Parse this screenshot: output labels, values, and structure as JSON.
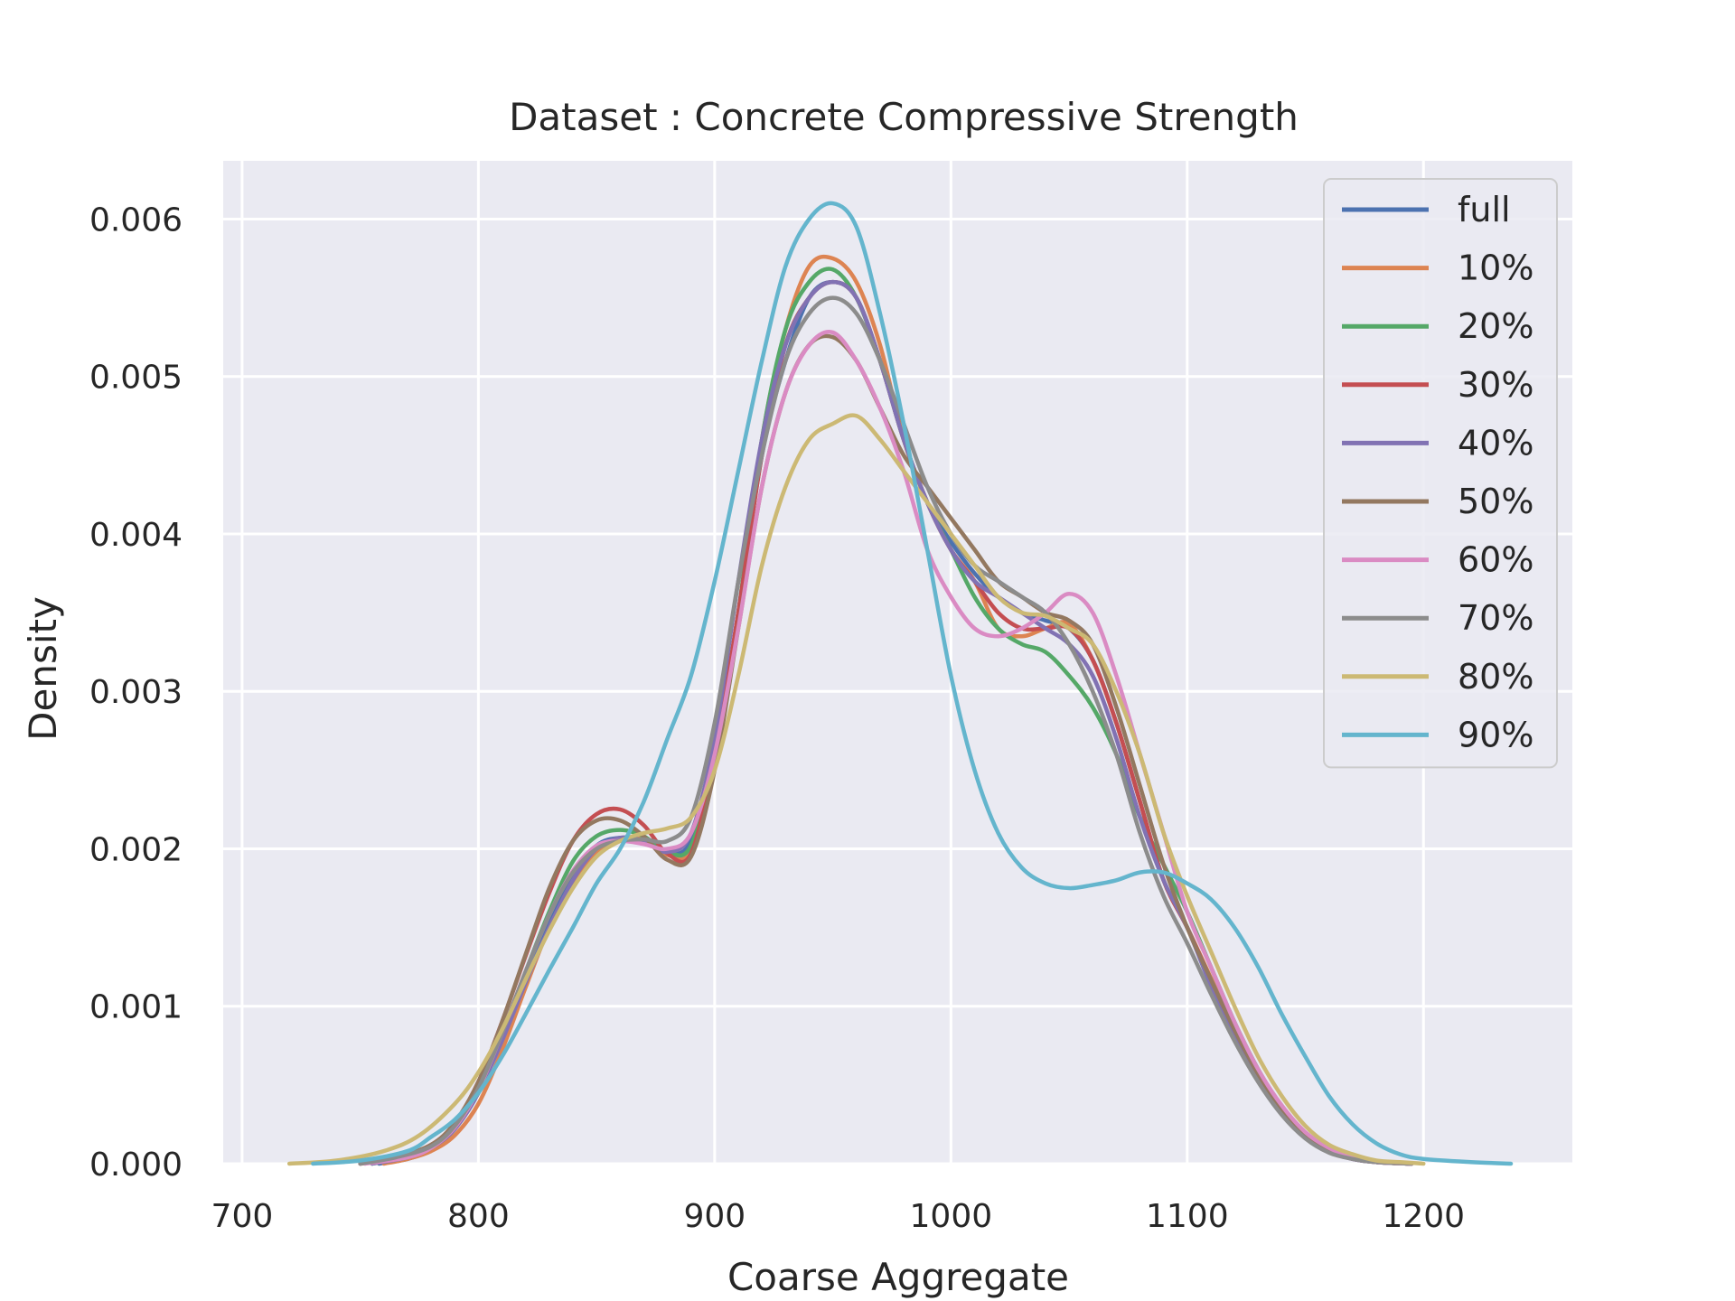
{
  "chart_data": {
    "type": "line",
    "title": "Dataset : Concrete Compressive Strength",
    "xlabel": "Coarse Aggregate",
    "ylabel": "Density",
    "xlim": [
      692,
      1263
    ],
    "ylim": [
      0,
      0.00637
    ],
    "x_ticks": [
      700,
      800,
      900,
      1000,
      1100,
      1200
    ],
    "x_tick_labels": [
      "700",
      "800",
      "900",
      "1000",
      "1100",
      "1200"
    ],
    "y_ticks": [
      0,
      0.001,
      0.002,
      0.003,
      0.004,
      0.005,
      0.006
    ],
    "y_tick_labels": [
      "0.000",
      "0.001",
      "0.002",
      "0.003",
      "0.004",
      "0.005",
      "0.006"
    ],
    "grid": true,
    "legend_position": "top-right",
    "background_color": "#eaeaf2",
    "series": [
      {
        "name": "full",
        "color": "#4c72b0",
        "x": [
          758,
          770,
          780,
          790,
          800,
          810,
          820,
          830,
          840,
          850,
          860,
          870,
          880,
          890,
          900,
          910,
          920,
          930,
          940,
          950,
          960,
          970,
          980,
          990,
          1000,
          1010,
          1020,
          1030,
          1040,
          1050,
          1060,
          1070,
          1080,
          1090,
          1100,
          1110,
          1120,
          1130,
          1140,
          1150,
          1160,
          1170,
          1180,
          1195
        ],
        "y": [
          0,
          3e-05,
          9e-05,
          0.00022,
          0.00045,
          0.0008,
          0.00117,
          0.00152,
          0.00182,
          0.00202,
          0.00207,
          0.00205,
          0.00197,
          0.00205,
          0.0026,
          0.0035,
          0.0045,
          0.0051,
          0.0055,
          0.0056,
          0.0055,
          0.0051,
          0.0046,
          0.0042,
          0.00395,
          0.00375,
          0.0036,
          0.0035,
          0.00345,
          0.0034,
          0.0032,
          0.0028,
          0.0023,
          0.0018,
          0.0015,
          0.00115,
          0.00082,
          0.00055,
          0.00033,
          0.00017,
          8e-05,
          3e-05,
          1e-05,
          0
        ]
      },
      {
        "name": "10%",
        "color": "#dd8452",
        "x": [
          760,
          770,
          780,
          790,
          800,
          810,
          820,
          830,
          840,
          850,
          860,
          870,
          880,
          890,
          900,
          910,
          920,
          930,
          940,
          950,
          960,
          970,
          980,
          990,
          1000,
          1010,
          1020,
          1030,
          1040,
          1050,
          1060,
          1070,
          1080,
          1090,
          1100,
          1110,
          1120,
          1130,
          1140,
          1150,
          1160,
          1170,
          1180,
          1195
        ],
        "y": [
          0,
          3e-05,
          8e-05,
          0.00018,
          0.00038,
          0.00072,
          0.00112,
          0.0015,
          0.00178,
          0.00198,
          0.00205,
          0.00206,
          0.00196,
          0.002,
          0.0026,
          0.0035,
          0.0046,
          0.0053,
          0.0057,
          0.00575,
          0.0056,
          0.0052,
          0.0046,
          0.0042,
          0.0039,
          0.0037,
          0.0034,
          0.00335,
          0.0034,
          0.00343,
          0.0032,
          0.0028,
          0.0023,
          0.0018,
          0.0015,
          0.00118,
          0.00085,
          0.00057,
          0.00035,
          0.00019,
          9e-05,
          4e-05,
          1e-05,
          0
        ]
      },
      {
        "name": "20%",
        "color": "#55a868",
        "x": [
          755,
          770,
          780,
          790,
          800,
          810,
          820,
          830,
          840,
          850,
          860,
          870,
          880,
          890,
          900,
          910,
          920,
          930,
          940,
          950,
          960,
          970,
          980,
          990,
          1000,
          1010,
          1020,
          1030,
          1040,
          1050,
          1060,
          1070,
          1080,
          1090,
          1100,
          1110,
          1120,
          1130,
          1140,
          1150,
          1160,
          1170,
          1180,
          1195
        ],
        "y": [
          0,
          4e-05,
          0.0001,
          0.00023,
          0.00047,
          0.00083,
          0.00122,
          0.0016,
          0.00192,
          0.00208,
          0.00212,
          0.00208,
          0.00198,
          0.00202,
          0.0026,
          0.0035,
          0.0046,
          0.0053,
          0.0056,
          0.00568,
          0.0055,
          0.0051,
          0.0046,
          0.0042,
          0.0039,
          0.0036,
          0.0034,
          0.0033,
          0.00325,
          0.0031,
          0.0029,
          0.0026,
          0.0022,
          0.0019,
          0.0016,
          0.00125,
          0.0009,
          0.0006,
          0.00036,
          0.00019,
          9e-05,
          4e-05,
          1e-05,
          0
        ]
      },
      {
        "name": "30%",
        "color": "#c44e52",
        "x": [
          750,
          765,
          780,
          790,
          800,
          810,
          820,
          830,
          840,
          850,
          860,
          870,
          880,
          890,
          900,
          910,
          920,
          930,
          940,
          950,
          960,
          970,
          980,
          990,
          1000,
          1010,
          1020,
          1030,
          1040,
          1050,
          1060,
          1070,
          1080,
          1090,
          1100,
          1110,
          1120,
          1130,
          1140,
          1150,
          1160,
          1170,
          1180,
          1195
        ],
        "y": [
          0,
          4e-05,
          0.00012,
          0.00026,
          0.00052,
          0.0009,
          0.00132,
          0.00172,
          0.00205,
          0.00222,
          0.00225,
          0.00215,
          0.00197,
          0.00197,
          0.0026,
          0.0035,
          0.0045,
          0.0052,
          0.0055,
          0.0056,
          0.0055,
          0.0051,
          0.0046,
          0.0042,
          0.0039,
          0.0037,
          0.0035,
          0.0034,
          0.0034,
          0.0034,
          0.0032,
          0.0028,
          0.0023,
          0.0018,
          0.0015,
          0.00117,
          0.00084,
          0.00056,
          0.00034,
          0.00018,
          8e-05,
          3e-05,
          1e-05,
          0
        ]
      },
      {
        "name": "40%",
        "color": "#8172b3",
        "x": [
          755,
          770,
          780,
          790,
          800,
          810,
          820,
          830,
          840,
          850,
          860,
          870,
          880,
          890,
          900,
          910,
          920,
          930,
          940,
          950,
          960,
          970,
          980,
          990,
          1000,
          1010,
          1020,
          1030,
          1040,
          1050,
          1060,
          1070,
          1080,
          1090,
          1100,
          1110,
          1120,
          1130,
          1140,
          1150,
          1160,
          1170,
          1180,
          1195
        ],
        "y": [
          0,
          4e-05,
          0.0001,
          0.00022,
          0.00045,
          0.00078,
          0.00115,
          0.0015,
          0.0018,
          0.002,
          0.00207,
          0.00205,
          0.00198,
          0.0021,
          0.0027,
          0.0037,
          0.0046,
          0.0052,
          0.0055,
          0.0056,
          0.0055,
          0.0051,
          0.0046,
          0.0042,
          0.0039,
          0.0037,
          0.0036,
          0.0035,
          0.0034,
          0.0033,
          0.0031,
          0.0027,
          0.0022,
          0.0018,
          0.0015,
          0.00113,
          0.0008,
          0.00053,
          0.00032,
          0.00017,
          8e-05,
          3e-05,
          1e-05,
          0
        ]
      },
      {
        "name": "50%",
        "color": "#937860",
        "x": [
          750,
          765,
          780,
          790,
          800,
          810,
          820,
          830,
          840,
          850,
          860,
          870,
          880,
          890,
          900,
          910,
          920,
          930,
          940,
          950,
          960,
          970,
          980,
          990,
          1000,
          1010,
          1020,
          1030,
          1040,
          1050,
          1060,
          1070,
          1080,
          1090,
          1100,
          1110,
          1120,
          1130,
          1140,
          1150,
          1160,
          1170,
          1180,
          1195
        ],
        "y": [
          0,
          4e-05,
          0.00012,
          0.00026,
          0.00052,
          0.0009,
          0.00133,
          0.00175,
          0.00205,
          0.00218,
          0.00218,
          0.00208,
          0.00193,
          0.00195,
          0.0025,
          0.0034,
          0.0043,
          0.0049,
          0.0052,
          0.00525,
          0.0051,
          0.0048,
          0.0045,
          0.0043,
          0.0041,
          0.0039,
          0.0037,
          0.0036,
          0.0035,
          0.00345,
          0.0033,
          0.0029,
          0.0024,
          0.0019,
          0.0015,
          0.00117,
          0.00085,
          0.00057,
          0.00035,
          0.00019,
          9e-05,
          4e-05,
          1e-05,
          0
        ]
      },
      {
        "name": "60%",
        "color": "#da8bc3",
        "x": [
          752,
          770,
          780,
          790,
          800,
          810,
          820,
          830,
          840,
          850,
          860,
          870,
          880,
          890,
          900,
          910,
          920,
          930,
          940,
          950,
          960,
          970,
          980,
          990,
          1000,
          1010,
          1020,
          1030,
          1040,
          1050,
          1060,
          1070,
          1080,
          1090,
          1100,
          1110,
          1120,
          1130,
          1140,
          1150,
          1160,
          1170,
          1180,
          1195
        ],
        "y": [
          0,
          4e-05,
          0.0001,
          0.00023,
          0.00047,
          0.00083,
          0.00122,
          0.00158,
          0.00186,
          0.00202,
          0.00205,
          0.00203,
          0.002,
          0.0021,
          0.0026,
          0.0034,
          0.0043,
          0.0049,
          0.0052,
          0.00528,
          0.0051,
          0.0048,
          0.0044,
          0.0039,
          0.0036,
          0.0034,
          0.00335,
          0.0034,
          0.0035,
          0.00362,
          0.0035,
          0.0031,
          0.0026,
          0.0021,
          0.0016,
          0.00125,
          0.0009,
          0.0006,
          0.00037,
          0.0002,
          0.0001,
          4e-05,
          1e-05,
          0
        ]
      },
      {
        "name": "70%",
        "color": "#8c8c8c",
        "x": [
          750,
          765,
          780,
          790,
          800,
          810,
          820,
          830,
          840,
          850,
          860,
          870,
          880,
          890,
          900,
          910,
          920,
          930,
          940,
          950,
          960,
          970,
          980,
          990,
          1000,
          1010,
          1020,
          1030,
          1040,
          1050,
          1060,
          1070,
          1080,
          1090,
          1100,
          1110,
          1120,
          1130,
          1140,
          1150,
          1160,
          1170,
          1180,
          1195
        ],
        "y": [
          0,
          4e-05,
          0.00011,
          0.00024,
          0.00048,
          0.00083,
          0.00122,
          0.00158,
          0.00185,
          0.002,
          0.00205,
          0.00206,
          0.00205,
          0.0022,
          0.0028,
          0.0037,
          0.0045,
          0.0051,
          0.0054,
          0.0055,
          0.0054,
          0.0051,
          0.0047,
          0.0043,
          0.004,
          0.0038,
          0.0037,
          0.0036,
          0.0035,
          0.0033,
          0.003,
          0.0026,
          0.0021,
          0.0017,
          0.0014,
          0.00108,
          0.00078,
          0.00052,
          0.00031,
          0.00016,
          7e-05,
          3e-05,
          1e-05,
          0
        ]
      },
      {
        "name": "80%",
        "color": "#ccb974",
        "x": [
          720,
          740,
          760,
          775,
          790,
          800,
          810,
          820,
          830,
          840,
          850,
          860,
          870,
          880,
          890,
          900,
          910,
          920,
          930,
          940,
          950,
          960,
          970,
          980,
          990,
          1000,
          1010,
          1020,
          1030,
          1040,
          1050,
          1060,
          1070,
          1080,
          1090,
          1100,
          1110,
          1120,
          1130,
          1140,
          1150,
          1160,
          1170,
          1180,
          1190,
          1200
        ],
        "y": [
          0,
          2e-05,
          8e-05,
          0.00018,
          0.00038,
          0.00058,
          0.00085,
          0.00117,
          0.00148,
          0.00175,
          0.00195,
          0.00205,
          0.0021,
          0.00213,
          0.0022,
          0.0025,
          0.0031,
          0.0038,
          0.0043,
          0.0046,
          0.0047,
          0.00475,
          0.0046,
          0.0044,
          0.0042,
          0.004,
          0.0038,
          0.0036,
          0.0035,
          0.00348,
          0.0034,
          0.0033,
          0.003,
          0.0026,
          0.0021,
          0.0017,
          0.00135,
          0.001,
          0.00068,
          0.00043,
          0.00024,
          0.00012,
          6e-05,
          2e-05,
          1e-05,
          0
        ]
      },
      {
        "name": "90%",
        "color": "#64b5cd",
        "x": [
          730,
          750,
          770,
          780,
          790,
          800,
          810,
          820,
          830,
          840,
          850,
          860,
          870,
          880,
          890,
          900,
          910,
          920,
          930,
          940,
          950,
          960,
          970,
          980,
          990,
          1000,
          1010,
          1020,
          1030,
          1040,
          1050,
          1060,
          1070,
          1080,
          1090,
          1100,
          1110,
          1120,
          1130,
          1140,
          1150,
          1160,
          1170,
          1180,
          1190,
          1200,
          1220,
          1237
        ],
        "y": [
          0,
          2e-05,
          8e-05,
          0.00017,
          0.00028,
          0.00045,
          0.00068,
          0.00095,
          0.00123,
          0.0015,
          0.00178,
          0.002,
          0.0023,
          0.0027,
          0.0031,
          0.0037,
          0.0044,
          0.0051,
          0.0057,
          0.006,
          0.0061,
          0.00595,
          0.0054,
          0.0047,
          0.0039,
          0.0031,
          0.0025,
          0.0021,
          0.00188,
          0.00178,
          0.00175,
          0.00177,
          0.0018,
          0.00185,
          0.00185,
          0.00178,
          0.00168,
          0.0015,
          0.00125,
          0.00095,
          0.00068,
          0.00043,
          0.00025,
          0.00013,
          6e-05,
          3e-05,
          1e-05,
          0
        ]
      }
    ]
  }
}
